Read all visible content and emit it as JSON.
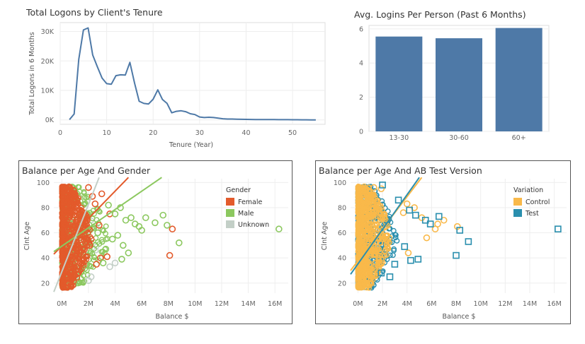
{
  "colors": {
    "line": "#4e79a7",
    "bar": "#4e79a7",
    "female": "#e35a2b",
    "male": "#8cc85f",
    "unknown": "#c3cfc7",
    "control": "#f9b94a",
    "test": "#2a8fae",
    "grid": "#eeeeee",
    "frame": "#555555"
  },
  "chart_data": [
    {
      "type": "line",
      "title": "Total Logons by Client's Tenure",
      "xlabel": "Tenure (Year)",
      "ylabel": "Total Logons in 6 Months",
      "xlim": [
        0,
        57
      ],
      "ylim": [
        -1500,
        33000
      ],
      "x_ticks": [
        0,
        10,
        20,
        30,
        40,
        50
      ],
      "y_ticks": [
        0,
        10000,
        20000,
        30000
      ],
      "y_tick_labels": [
        "0K",
        "10K",
        "20K",
        "30K"
      ],
      "series": [
        {
          "x": [
            2,
            3,
            4,
            5,
            6,
            7,
            8,
            9,
            10,
            11,
            12,
            13,
            14,
            15,
            16,
            17,
            18,
            19,
            20,
            21,
            22,
            23,
            24,
            25,
            26,
            27,
            28,
            29,
            30,
            31,
            32,
            33,
            34,
            35,
            36,
            37,
            38,
            39,
            40,
            41,
            42,
            43,
            44,
            45,
            46,
            47,
            48,
            49,
            50,
            51,
            52,
            53,
            54,
            55
          ],
          "y": [
            100,
            2000,
            20500,
            30500,
            31200,
            22000,
            18000,
            14200,
            12300,
            12100,
            15000,
            15300,
            15200,
            19500,
            12500,
            6300,
            5600,
            5400,
            7000,
            10200,
            6900,
            5600,
            2400,
            2900,
            3100,
            2800,
            2100,
            1800,
            1000,
            800,
            900,
            800,
            600,
            400,
            300,
            300,
            250,
            200,
            180,
            160,
            140,
            130,
            120,
            110,
            100,
            90,
            80,
            70,
            60,
            50,
            40,
            30,
            20,
            10
          ]
        }
      ]
    },
    {
      "type": "bar",
      "title": "Avg. Logins Per Person (Past 6 Months)",
      "categories": [
        "13-30",
        "30-60",
        "60+"
      ],
      "values": [
        5.55,
        5.45,
        6.05
      ],
      "ylim": [
        0,
        6.2
      ],
      "y_ticks": [
        0,
        2,
        4,
        6
      ],
      "xlabel": "",
      "ylabel": ""
    },
    {
      "type": "scatter",
      "title": "Balance per Age And Gender",
      "xlabel": "Balance $",
      "ylabel": "Clnt Age",
      "xlim": [
        -0.6,
        17
      ],
      "ylim": [
        12,
        103
      ],
      "x_ticks": [
        0,
        2,
        4,
        6,
        8,
        10,
        12,
        14,
        16
      ],
      "x_tick_labels": [
        "0M",
        "2M",
        "4M",
        "6M",
        "8M",
        "10M",
        "12M",
        "14M",
        "16M"
      ],
      "y_ticks": [
        20,
        40,
        60,
        80,
        100
      ],
      "legend": {
        "title": "Gender",
        "position": "top-right",
        "items": [
          {
            "label": "Female",
            "key": "female"
          },
          {
            "label": "Male",
            "key": "male"
          },
          {
            "label": "Unknown",
            "key": "unknown"
          }
        ]
      },
      "series": [
        {
          "name": "Female",
          "x": [
            2.0,
            2.3,
            2.5,
            3.0,
            1.9,
            2.8,
            2.2,
            1.7,
            2.9,
            2.6,
            3.4,
            8.3,
            8.1,
            3.6,
            2.1
          ],
          "y": [
            96,
            89,
            83,
            91,
            70,
            66,
            55,
            47,
            40,
            35,
            41,
            63,
            42,
            75,
            50
          ]
        },
        {
          "name": "Male",
          "x": [
            3.5,
            4.0,
            4.4,
            4.8,
            5.2,
            5.5,
            6.0,
            6.3,
            7.0,
            7.6,
            7.9,
            8.8,
            16.3,
            3.8,
            4.6,
            5.0,
            3.1,
            2.7,
            4.2,
            3.3,
            5.8,
            4.5
          ],
          "y": [
            82,
            75,
            80,
            70,
            72,
            67,
            62,
            72,
            68,
            74,
            66,
            52,
            63,
            55,
            50,
            44,
            36,
            60,
            58,
            47,
            65,
            39
          ]
        },
        {
          "name": "Unknown",
          "x": [
            4.0,
            3.6,
            2.2,
            2.0
          ],
          "y": [
            36,
            33,
            25,
            22
          ]
        }
      ],
      "trend_lines": [
        {
          "series": "Female",
          "x": [
            -0.6,
            5.0
          ],
          "y": [
            43,
            104
          ]
        },
        {
          "series": "Male",
          "x": [
            -0.6,
            7.5
          ],
          "y": [
            45,
            104
          ]
        },
        {
          "series": "Unknown",
          "x": [
            -0.6,
            2.8
          ],
          "y": [
            13,
            104
          ]
        }
      ]
    },
    {
      "type": "scatter",
      "title": "Balance per Age And AB Test Version",
      "xlabel": "Balance $",
      "ylabel": "Clnt Age",
      "xlim": [
        -0.6,
        17
      ],
      "ylim": [
        12,
        103
      ],
      "x_ticks": [
        0,
        2,
        4,
        6,
        8,
        10,
        12,
        14,
        16
      ],
      "x_tick_labels": [
        "0M",
        "2M",
        "4M",
        "6M",
        "8M",
        "10M",
        "12M",
        "14M",
        "16M"
      ],
      "y_ticks": [
        20,
        40,
        60,
        80,
        100
      ],
      "legend": {
        "title": "Variation",
        "position": "top-right",
        "items": [
          {
            "label": "Control",
            "key": "control"
          },
          {
            "label": "Test",
            "key": "test"
          }
        ]
      },
      "series": [
        {
          "name": "Control",
          "x": [
            1.3,
            1.9,
            4.0,
            4.6,
            5.2,
            6.5,
            6.3,
            8.1,
            5.6,
            4.1,
            7.0,
            3.7
          ],
          "y": [
            96,
            95,
            83,
            80,
            72,
            67,
            63,
            65,
            56,
            44,
            70,
            76
          ]
        },
        {
          "name": "Test",
          "x": [
            2.0,
            3.3,
            4.2,
            4.7,
            5.5,
            5.9,
            6.6,
            8.3,
            9.0,
            16.3,
            3.8,
            4.3,
            3.0,
            4.9,
            8.0,
            1.9,
            2.6
          ],
          "y": [
            98,
            86,
            78,
            74,
            70,
            67,
            73,
            62,
            53,
            63,
            49,
            38,
            35,
            39,
            42,
            28,
            25
          ]
        }
      ],
      "trend_lines": [
        {
          "series": "Control",
          "x": [
            -0.6,
            5.2
          ],
          "y": [
            30,
            104
          ]
        },
        {
          "series": "Test",
          "x": [
            -0.6,
            5.0
          ],
          "y": [
            27,
            104
          ]
        }
      ]
    }
  ]
}
